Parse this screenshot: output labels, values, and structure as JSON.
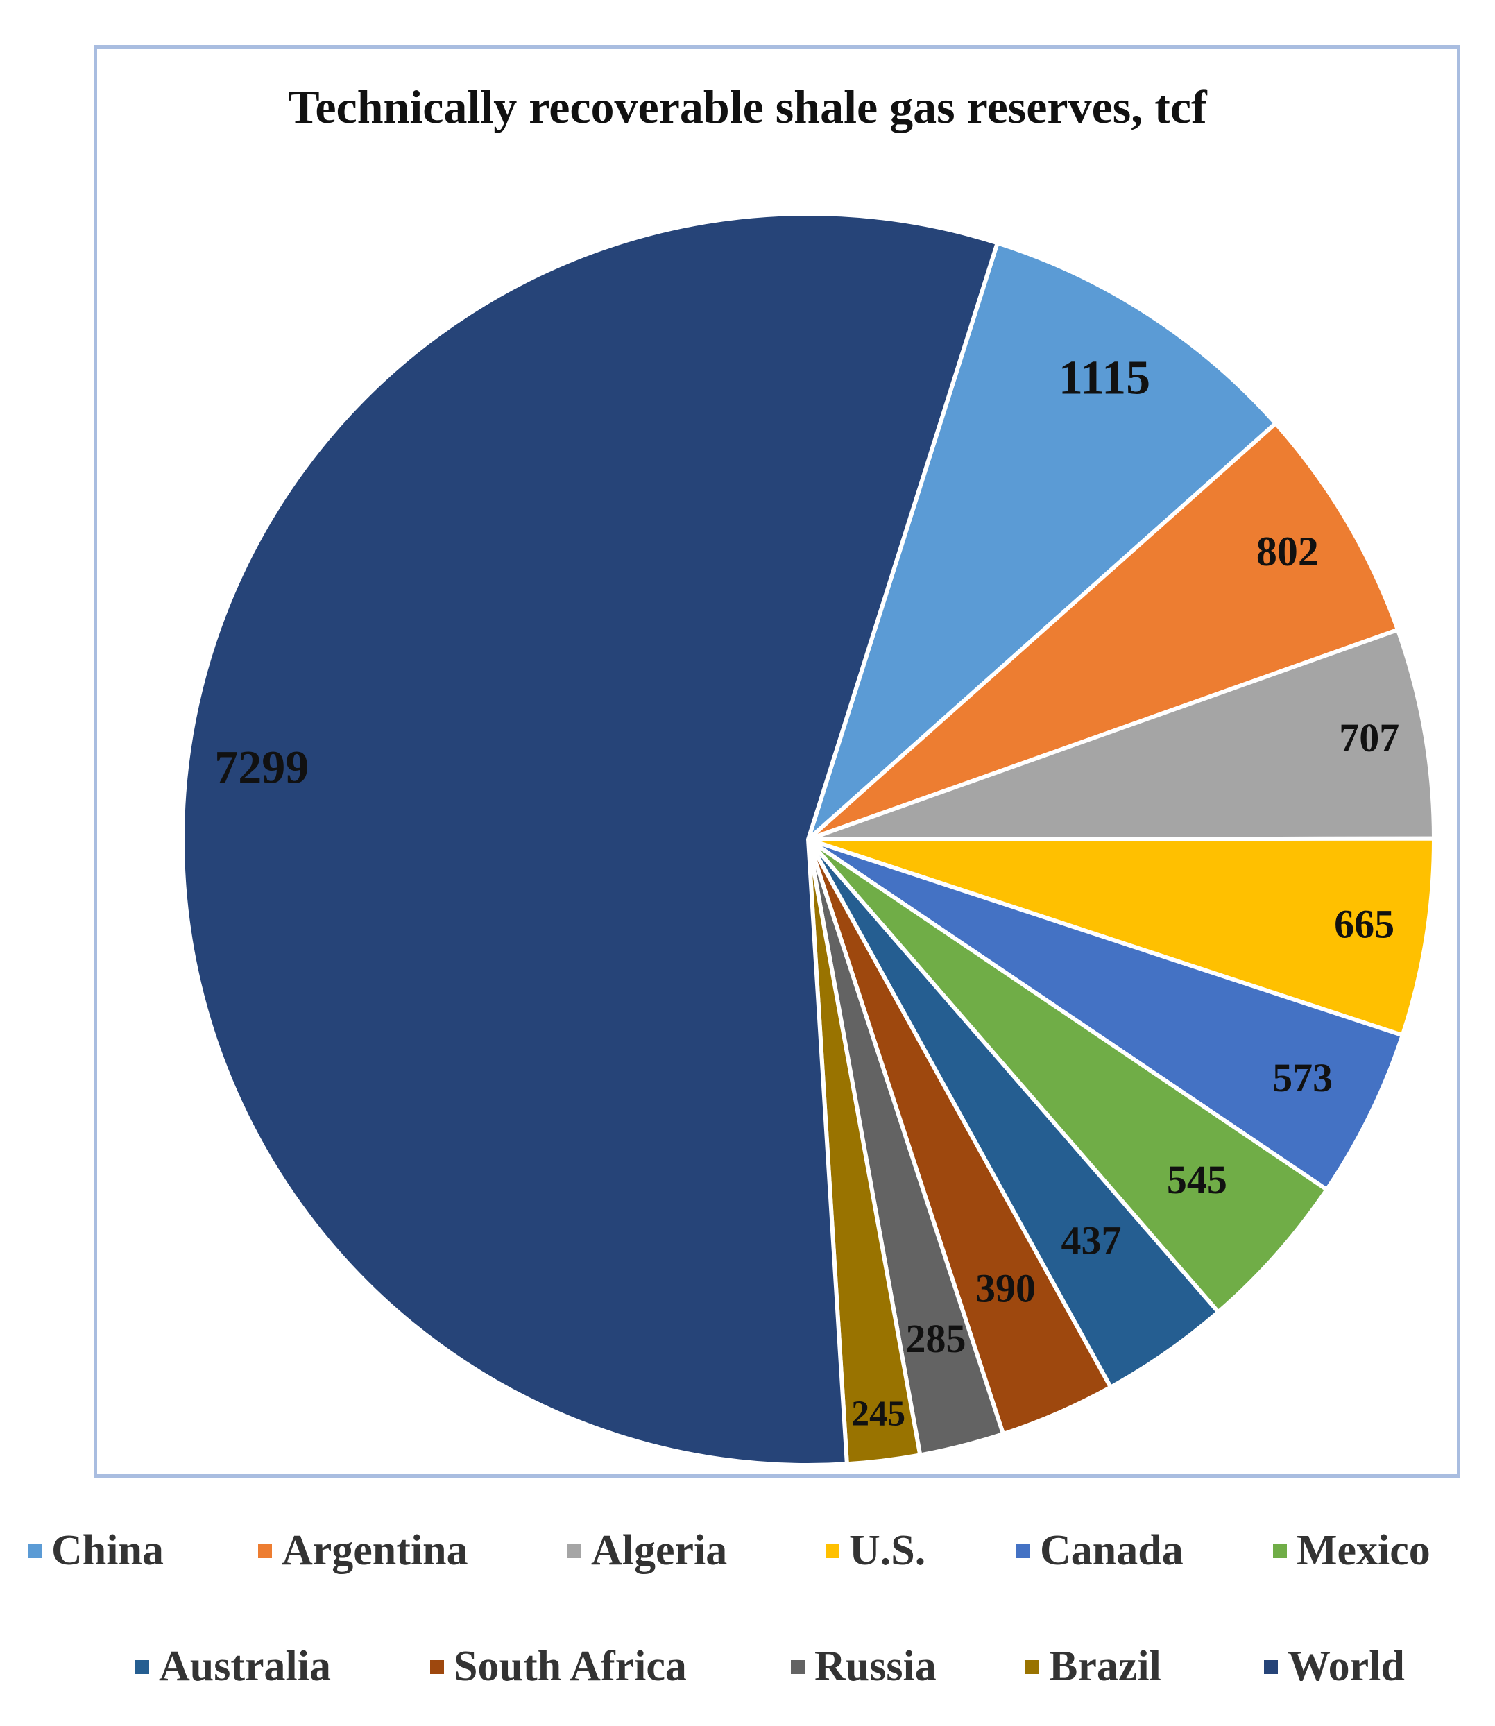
{
  "chart_data": {
    "type": "pie",
    "title": "Technically recoverable shale gas reserves, tcf",
    "categories": [
      "China",
      "Argentina",
      "Algeria",
      "U.S.",
      "Canada",
      "Mexico",
      "Australia",
      "South Africa",
      "Russia",
      "Brazil",
      "World"
    ],
    "values": [
      1115,
      802,
      707,
      665,
      573,
      545,
      437,
      390,
      285,
      245,
      7299
    ],
    "colors": [
      "#5b9bd5",
      "#ed7d31",
      "#a5a5a5",
      "#ffc000",
      "#4472c4",
      "#70ad47",
      "#255e91",
      "#9e480e",
      "#636363",
      "#997300",
      "#264478"
    ],
    "legend": "bottom"
  }
}
